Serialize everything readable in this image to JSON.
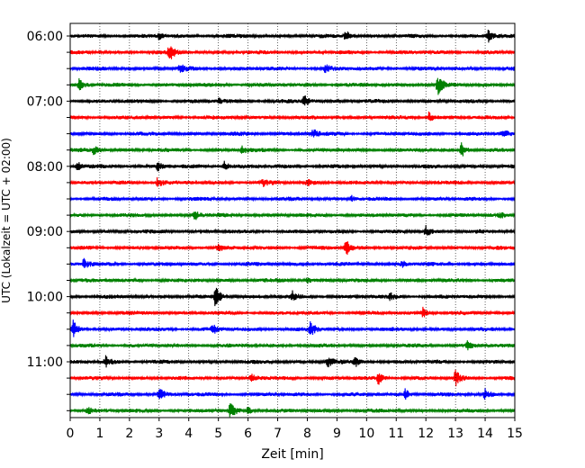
{
  "chart_data": {
    "type": "line",
    "title": "",
    "xlabel": "Zeit  [min]",
    "ylabel": "UTC (Lokalzeit = UTC + 02:00)",
    "xlim": [
      0,
      15
    ],
    "x_ticks": [
      "0",
      "1",
      "2",
      "3",
      "4",
      "5",
      "6",
      "7",
      "8",
      "9",
      "10",
      "11",
      "12",
      "13",
      "14",
      "15"
    ],
    "y_tick_labels": [
      "06:00",
      "07:00",
      "08:00",
      "09:00",
      "10:00",
      "11:00"
    ],
    "grid": "vertical dotted",
    "trace_interval_minutes": 15,
    "trace_colors": [
      "#000000",
      "#ff0000",
      "#0000ff",
      "#008000"
    ],
    "series": [
      {
        "start": "06:00",
        "events": [
          {
            "t": 3.0,
            "amp": 0.3
          },
          {
            "t": 9.3,
            "amp": 0.55
          },
          {
            "t": 14.1,
            "amp": 0.55
          }
        ]
      },
      {
        "start": "06:15",
        "events": [
          {
            "t": 3.35,
            "amp": 0.75
          }
        ]
      },
      {
        "start": "06:30",
        "events": [
          {
            "t": 3.7,
            "amp": 0.35
          },
          {
            "t": 8.6,
            "amp": 0.35
          }
        ]
      },
      {
        "start": "06:45",
        "events": [
          {
            "t": 0.3,
            "amp": 0.5
          },
          {
            "t": 12.4,
            "amp": 0.85
          }
        ]
      },
      {
        "start": "07:00",
        "events": [
          {
            "t": 5.0,
            "amp": 0.25
          },
          {
            "t": 7.9,
            "amp": 0.6
          }
        ]
      },
      {
        "start": "07:15",
        "events": [
          {
            "t": 12.1,
            "amp": 0.5
          }
        ]
      },
      {
        "start": "07:30",
        "events": [
          {
            "t": 8.2,
            "amp": 0.4
          },
          {
            "t": 14.6,
            "amp": 0.45
          }
        ]
      },
      {
        "start": "07:45",
        "events": [
          {
            "t": 0.8,
            "amp": 0.45
          },
          {
            "t": 5.8,
            "amp": 0.35
          },
          {
            "t": 13.2,
            "amp": 0.7
          }
        ]
      },
      {
        "start": "08:00",
        "events": [
          {
            "t": 0.25,
            "amp": 0.4
          },
          {
            "t": 2.95,
            "amp": 0.45
          },
          {
            "t": 5.2,
            "amp": 0.45
          }
        ]
      },
      {
        "start": "08:15",
        "events": [
          {
            "t": 2.95,
            "amp": 0.55
          },
          {
            "t": 6.5,
            "amp": 0.3
          },
          {
            "t": 8.0,
            "amp": 0.3
          }
        ]
      },
      {
        "start": "08:30",
        "events": [
          {
            "t": 9.5,
            "amp": 0.25
          }
        ]
      },
      {
        "start": "08:45",
        "events": [
          {
            "t": 4.2,
            "amp": 0.5
          },
          {
            "t": 14.5,
            "amp": 0.3
          }
        ]
      },
      {
        "start": "09:00",
        "events": [
          {
            "t": 12.0,
            "amp": 0.45
          }
        ]
      },
      {
        "start": "09:15",
        "events": [
          {
            "t": 9.3,
            "amp": 0.75
          },
          {
            "t": 5.0,
            "amp": 0.3
          }
        ]
      },
      {
        "start": "09:30",
        "events": [
          {
            "t": 0.45,
            "amp": 0.55
          },
          {
            "t": 11.2,
            "amp": 0.3
          }
        ]
      },
      {
        "start": "09:45",
        "events": [
          {
            "t": 8.0,
            "amp": 0.25
          }
        ]
      },
      {
        "start": "10:00",
        "events": [
          {
            "t": 4.9,
            "amp": 0.95
          },
          {
            "t": 7.5,
            "amp": 0.4
          },
          {
            "t": 10.8,
            "amp": 0.3
          }
        ]
      },
      {
        "start": "10:15",
        "events": [
          {
            "t": 11.9,
            "amp": 0.5
          }
        ]
      },
      {
        "start": "10:30",
        "events": [
          {
            "t": 0.1,
            "amp": 0.75
          },
          {
            "t": 4.8,
            "amp": 0.45
          },
          {
            "t": 8.1,
            "amp": 0.7
          }
        ]
      },
      {
        "start": "10:45",
        "events": [
          {
            "t": 13.4,
            "amp": 0.35
          }
        ]
      },
      {
        "start": "11:00",
        "events": [
          {
            "t": 1.2,
            "amp": 0.5
          },
          {
            "t": 8.7,
            "amp": 0.55
          },
          {
            "t": 9.6,
            "amp": 0.45
          }
        ]
      },
      {
        "start": "11:15",
        "events": [
          {
            "t": 6.1,
            "amp": 0.4
          },
          {
            "t": 10.4,
            "amp": 0.55
          },
          {
            "t": 13.0,
            "amp": 0.7
          }
        ]
      },
      {
        "start": "11:30",
        "events": [
          {
            "t": 3.0,
            "amp": 0.6
          },
          {
            "t": 11.3,
            "amp": 0.5
          },
          {
            "t": 14.0,
            "amp": 0.55
          }
        ]
      },
      {
        "start": "11:45",
        "events": [
          {
            "t": 5.4,
            "amp": 0.8
          },
          {
            "t": 6.0,
            "amp": 0.4
          },
          {
            "t": 0.6,
            "amp": 0.3
          }
        ]
      }
    ]
  }
}
